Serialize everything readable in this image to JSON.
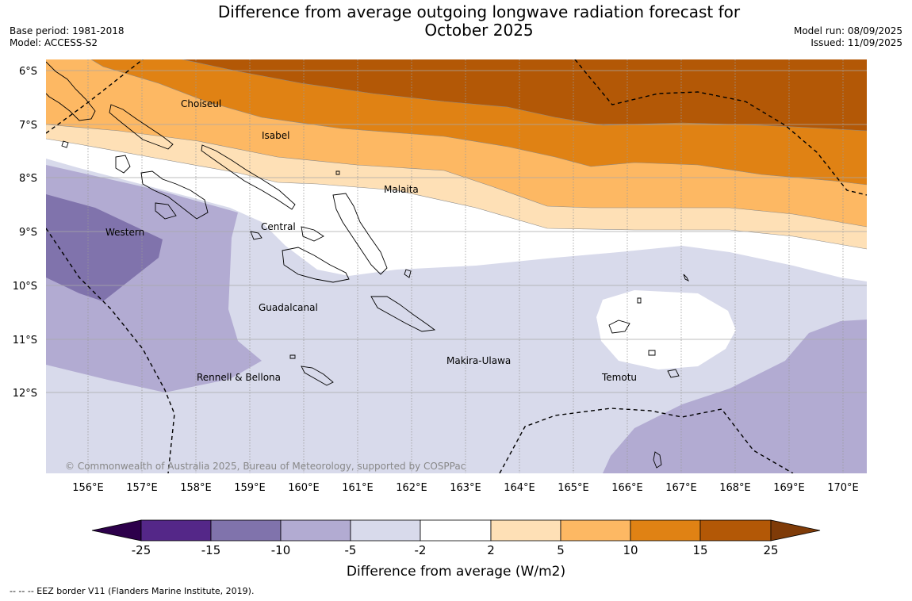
{
  "title": {
    "line1": "Difference from average outgoing longwave radiation forecast for",
    "line2": "October 2025"
  },
  "meta_left": {
    "base_period": "Base period: 1981-2018",
    "model": "Model: ACCESS-S2"
  },
  "meta_right": {
    "model_run": "Model run: 08/09/2025",
    "issued": "Issued: 11/09/2025"
  },
  "map": {
    "lat_labels": [
      "6°S",
      "7°S",
      "8°S",
      "9°S",
      "10°S",
      "11°S",
      "12°S"
    ],
    "lon_labels": [
      "156°E",
      "157°E",
      "158°E",
      "159°E",
      "160°E",
      "161°E",
      "162°E",
      "163°E",
      "164°E",
      "165°E",
      "166°E",
      "167°E",
      "168°E",
      "169°E",
      "170°E"
    ],
    "region_labels": [
      "Choiseul",
      "Isabel",
      "Malaita",
      "Central",
      "Western",
      "Guadalcanal",
      "Makira-Ulawa",
      "Temotu",
      "Rennell & Bellona"
    ],
    "copyright": "© Commonwealth of Australia 2025, Bureau of Meteorology, supported by COSPPac"
  },
  "colorbar": {
    "label": "Difference from average (W/m2)",
    "ticks": [
      "-25",
      "-15",
      "-10",
      "-5",
      "-2",
      "2",
      "5",
      "10",
      "15",
      "25"
    ],
    "colors": [
      "#542788",
      "#8073ac",
      "#b2abd2",
      "#d8daeb",
      "#ffffff",
      "#fee0b6",
      "#fdb863",
      "#e08214",
      "#b35806"
    ],
    "under_color": "#2d004b",
    "over_color": "#7f3b08"
  },
  "footer": "--  --  -- EEZ border V11 (Flanders Marine Institute, 2019)."
}
